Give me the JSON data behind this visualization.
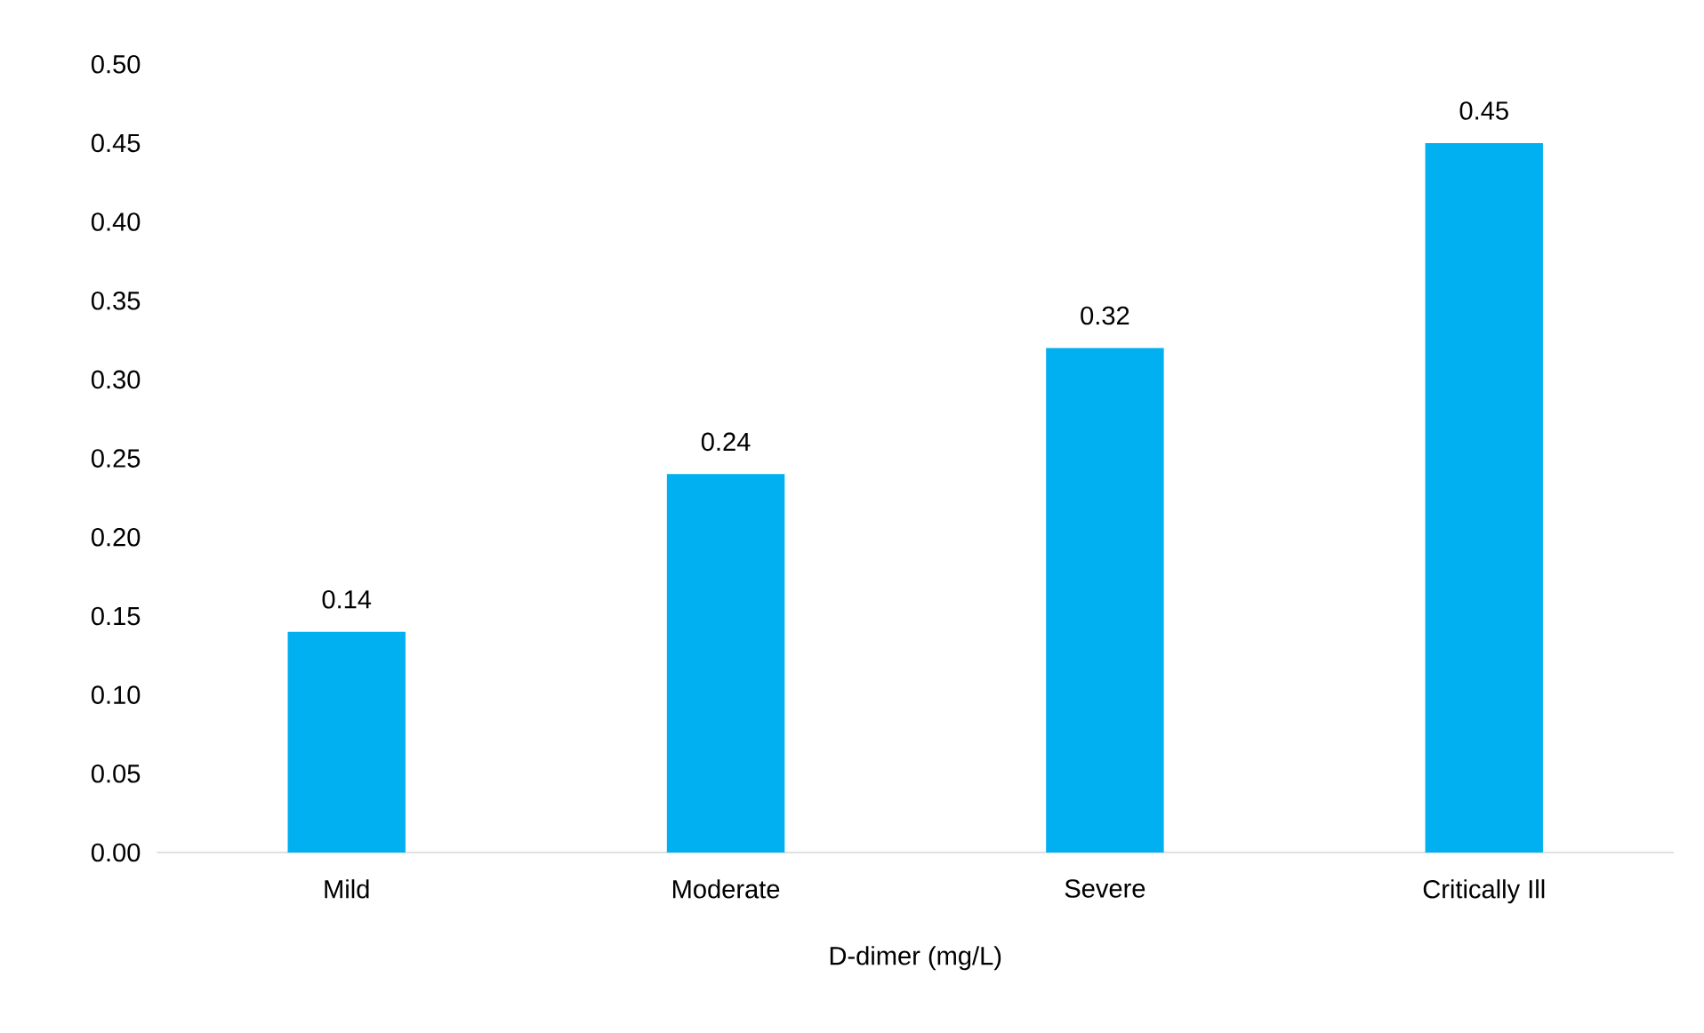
{
  "chart_data": {
    "type": "bar",
    "xlabel": "D-dimer (mg/L)",
    "categories": [
      "Mild",
      "Moderate",
      "Severe",
      "Critically Ill"
    ],
    "values": [
      0.14,
      0.24,
      0.32,
      0.45
    ],
    "color": "#00b0f0",
    "ylim": [
      0,
      0.5
    ],
    "yticks": [
      {
        "value": 0,
        "label": "0.00"
      },
      {
        "value": 0.05,
        "label": "0.05"
      },
      {
        "value": 0.1,
        "label": "0.10"
      },
      {
        "value": 0.15,
        "label": "0.15"
      },
      {
        "value": 0.2,
        "label": "0.20"
      },
      {
        "value": 0.25,
        "label": "0.25"
      },
      {
        "value": 0.3,
        "label": "0.30"
      },
      {
        "value": 0.35,
        "label": "0.35"
      },
      {
        "value": 0.4,
        "label": "0.40"
      },
      {
        "value": 0.45,
        "label": "0.45"
      },
      {
        "value": 0.5,
        "label": "0.50"
      }
    ],
    "data_labels": true
  }
}
